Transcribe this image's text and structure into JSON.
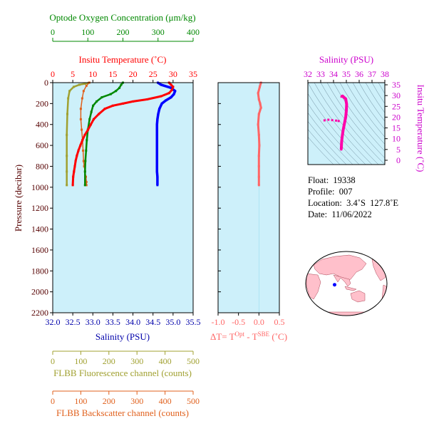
{
  "colors": {
    "plot_bg": "#cdf0fa",
    "temperature": "#ff0000",
    "salinity": "#0000ff",
    "salinity_axis": "#0000aa",
    "oxygen": "#008800",
    "fluorescence": "#a0a030",
    "backscatter": "#e0601c",
    "delta_t": "#ff6666",
    "ts_profile": "#ff00aa",
    "ts_axis": "#cc00cc",
    "pressure_axis": "#550000",
    "land": "#ffc0cb"
  },
  "chart_data": [
    {
      "name": "profile-panel",
      "type": "line",
      "ylabel": "Pressure (decibar)",
      "ylim": [
        2200,
        0
      ],
      "yticks": [
        0,
        200,
        400,
        600,
        800,
        1000,
        1200,
        1400,
        1600,
        1800,
        2000,
        2200
      ],
      "axes": {
        "oxygen": {
          "label": "Optode Oxygen Concentration (μm/kg)",
          "range": [
            0,
            400
          ],
          "ticks": [
            0,
            100,
            200,
            300,
            400
          ]
        },
        "temperature": {
          "label": "Insitu Temperature (˚C)",
          "range": [
            0,
            35
          ],
          "ticks": [
            0,
            5,
            10,
            15,
            20,
            25,
            30,
            35
          ]
        },
        "salinity": {
          "label": "Salinity (PSU)",
          "range": [
            32.0,
            35.5
          ],
          "ticks": [
            32.0,
            32.5,
            33.0,
            33.5,
            34.0,
            34.5,
            35.0,
            35.5
          ]
        },
        "fluorescence": {
          "label": "FLBB Fluorescence channel (counts)",
          "range": [
            0,
            500
          ],
          "ticks": [
            0,
            100,
            200,
            300,
            400,
            500
          ]
        },
        "backscatter": {
          "label": "FLBB Backscatter channel (counts)",
          "range": [
            0,
            500
          ],
          "ticks": [
            0,
            100,
            200,
            300,
            400,
            500
          ]
        }
      },
      "series": [
        {
          "name": "temperature",
          "x": [
            29.0,
            29.5,
            30.0,
            29.7,
            29.0,
            27.0,
            23.5,
            20.0,
            17.5,
            15.0,
            13.0,
            11.5,
            10.2,
            9.5,
            8.8,
            8.0,
            7.4,
            6.9,
            6.4,
            6.0,
            5.7,
            5.5,
            5.3,
            5.1,
            5.0
          ],
          "y": [
            0,
            20,
            40,
            70,
            100,
            130,
            160,
            180,
            200,
            220,
            250,
            300,
            350,
            400,
            450,
            500,
            550,
            600,
            650,
            700,
            750,
            800,
            850,
            900,
            980
          ]
        },
        {
          "name": "salinity",
          "x": [
            34.62,
            34.7,
            34.95,
            35.05,
            35.02,
            34.95,
            34.82,
            34.72,
            34.66,
            34.63,
            34.61,
            34.6,
            34.6,
            34.6,
            34.6,
            34.6,
            34.6,
            34.6,
            34.61,
            34.61
          ],
          "y": [
            0,
            20,
            50,
            80,
            110,
            140,
            170,
            200,
            250,
            300,
            350,
            400,
            450,
            500,
            600,
            700,
            800,
            850,
            900,
            980
          ]
        },
        {
          "name": "oxygen",
          "x": [
            200,
            195,
            190,
            180,
            165,
            140,
            125,
            115,
            110,
            105,
            100,
            97,
            95,
            93,
            92,
            92
          ],
          "y": [
            0,
            20,
            50,
            80,
            110,
            140,
            180,
            220,
            280,
            350,
            450,
            550,
            650,
            750,
            850,
            980
          ]
        },
        {
          "name": "fluorescence",
          "x": [
            130,
            115,
            95,
            75,
            60,
            55,
            52,
            50,
            50,
            50,
            50
          ],
          "y": [
            0,
            10,
            20,
            40,
            80,
            150,
            300,
            500,
            700,
            850,
            980
          ]
        },
        {
          "name": "backscatter",
          "x": [
            130,
            120,
            110,
            105,
            100,
            100,
            103,
            106,
            108,
            110,
            112,
            115,
            118,
            120,
            120
          ],
          "y": [
            0,
            30,
            80,
            150,
            250,
            350,
            450,
            550,
            650,
            750,
            800,
            850,
            900,
            950,
            980
          ]
        }
      ]
    },
    {
      "name": "delta-t-panel",
      "type": "line",
      "xlabel": "ΔT= T",
      "xlabel_sup1": "Opt",
      "xlabel_mid": " - T",
      "xlabel_sup2": "SBE",
      "xlabel_tail": " (˚C)",
      "xlim": [
        -1.0,
        0.5
      ],
      "xticks": [
        -1.0,
        -0.5,
        0.0,
        0.5
      ],
      "xtick_labels": [
        "-1.0",
        "-0.5",
        "0.0",
        "0.5"
      ],
      "ylim": [
        2200,
        0
      ],
      "series": [
        {
          "name": "delta-t",
          "x": [
            0.05,
            0.02,
            -0.02,
            0.0,
            0.03,
            0.05,
            0.0,
            -0.02,
            0.0,
            0.01,
            0.0,
            0.0,
            0.0,
            0.0
          ],
          "y": [
            0,
            40,
            100,
            160,
            200,
            240,
            300,
            400,
            500,
            600,
            700,
            800,
            900,
            980
          ]
        }
      ]
    },
    {
      "name": "ts-panel",
      "type": "scatter",
      "xlabel": "Salinity (PSU)",
      "ylabel": "Insitu Temperature (˚C)",
      "xlim": [
        32,
        38
      ],
      "ylim": [
        -2,
        36
      ],
      "xticks": [
        32,
        33,
        34,
        35,
        36,
        37,
        38
      ],
      "yticks": [
        0,
        5,
        10,
        15,
        20,
        25,
        30,
        35
      ],
      "series": [
        {
          "name": "ts",
          "x": [
            34.62,
            34.7,
            34.95,
            35.02,
            35.0,
            34.95,
            34.85,
            34.75,
            34.68,
            34.64,
            34.62,
            34.61,
            34.6
          ],
          "y": [
            29.5,
            29.8,
            28.5,
            26.0,
            23.0,
            20.0,
            17.0,
            14.0,
            11.0,
            9.0,
            7.5,
            6.0,
            5.0
          ]
        },
        {
          "name": "ts-outliers",
          "x": [
            33.3,
            33.6,
            33.9,
            34.2,
            34.4
          ],
          "y": [
            18.5,
            18.8,
            18.6,
            18.4,
            18.2
          ]
        }
      ]
    }
  ],
  "info": {
    "float": "Float:  19338",
    "profile": "Profile:  007",
    "location": "Location:  3.4˚S  127.8˚E",
    "date": "Date:  11/06/2022"
  },
  "map": {
    "float_lon": 127.8,
    "float_lat": -3.4
  }
}
